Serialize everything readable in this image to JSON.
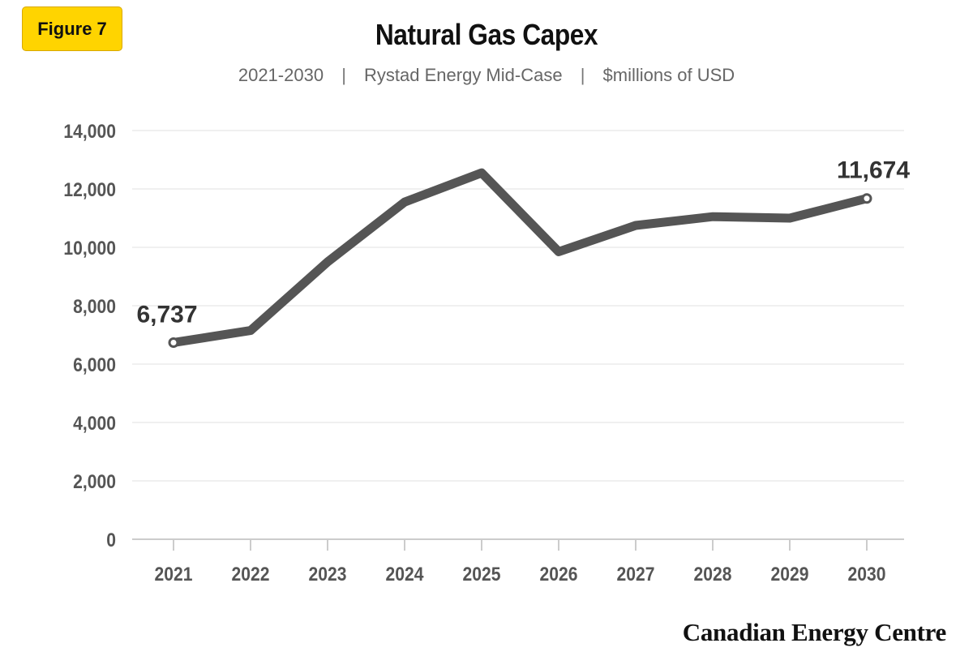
{
  "badge": {
    "label": "Figure 7",
    "color": "#ffd400"
  },
  "title": "Natural Gas Capex",
  "subtitle": {
    "parts": [
      "2021-2030",
      "Rystad Energy Mid-Case",
      "$millions of USD"
    ],
    "separator": "|"
  },
  "brand": "Canadian Energy Centre",
  "colors": {
    "line": "#555555",
    "axis_text": "#555555",
    "grid": "#e2e2e2"
  },
  "chart_data": {
    "type": "line",
    "title": "Natural Gas Capex",
    "categories": [
      "2021",
      "2022",
      "2023",
      "2024",
      "2025",
      "2026",
      "2027",
      "2028",
      "2029",
      "2030"
    ],
    "series": [
      {
        "values": [
          6737,
          7150,
          9500,
          11550,
          12550,
          9850,
          10750,
          11050,
          11000,
          11674
        ]
      }
    ],
    "ylim": [
      0,
      14000
    ],
    "yticks": [
      0,
      2000,
      4000,
      6000,
      8000,
      10000,
      12000,
      14000
    ],
    "ytick_labels": [
      "0",
      "2,000",
      "4,000",
      "6,000",
      "8,000",
      "10,000",
      "12,000",
      "14,000"
    ],
    "annotations": [
      {
        "category": "2021",
        "label": "6,737"
      },
      {
        "category": "2030",
        "label": "11,674"
      }
    ],
    "grid": true,
    "legend": "none"
  }
}
